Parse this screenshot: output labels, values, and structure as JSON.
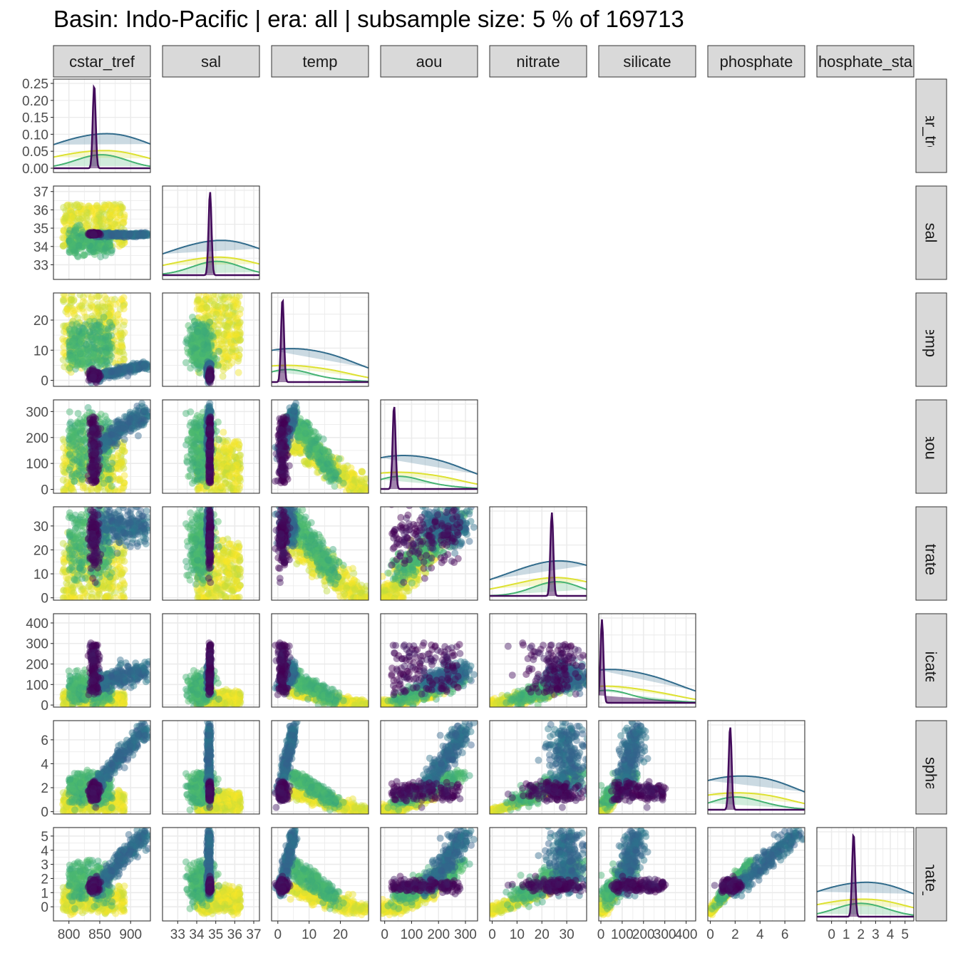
{
  "title": "Basin: Indo-Pacific | era: all | subsample size: 5 % of 169713",
  "chart_data": {
    "type": "scatter",
    "subtype": "pairs matrix (lower triangle scatter, diagonal density)",
    "grid": true,
    "color_scale": "viridis",
    "colors": {
      "purple": "#440154",
      "blue": "#31688E",
      "teal": "#21918C",
      "green": "#35B779",
      "yellow": "#FDE725",
      "strip_bg": "#D9D9D9",
      "grid": "#EBEBEB"
    },
    "variables": [
      "cstar_tref",
      "sal",
      "temp",
      "aou",
      "nitrate",
      "silicate",
      "phosphate",
      "phosphate_star"
    ],
    "column_labels": [
      "cstar_tref",
      "sal",
      "temp",
      "aou",
      "nitrate",
      "silicate",
      "phosphate",
      "hosphate_sta"
    ],
    "row_labels": [
      "cstar_tref",
      "sal",
      "temp",
      "aou",
      "nitrate",
      "silicate",
      "phosphate",
      "hosphate_sta"
    ],
    "ranges": {
      "cstar_tref": [
        775,
        932
      ],
      "sal": [
        32.2,
        37.3
      ],
      "temp": [
        -2,
        29
      ],
      "aou": [
        -15,
        345
      ],
      "nitrate": [
        -1,
        38
      ],
      "silicate": [
        -10,
        445
      ],
      "phosphate": [
        -0.2,
        7.6
      ],
      "phosphate_star": [
        -1.0,
        5.6
      ]
    },
    "x_tick_labels": {
      "cstar_tref": [
        "800",
        "850",
        "900"
      ],
      "sal": [
        "33",
        "34",
        "35",
        "36",
        "37"
      ],
      "temp": [
        "0",
        "10",
        "20"
      ],
      "aou": [
        "0",
        "100",
        "200",
        "300"
      ],
      "nitrate": [
        "0",
        "10",
        "20",
        "30"
      ],
      "silicate": [
        "0",
        "100",
        "200",
        "300",
        "400"
      ],
      "phosphate": [
        "0",
        "2",
        "4",
        "6"
      ],
      "phosphate_star": [
        "0",
        "1",
        "2",
        "3",
        "4",
        "5"
      ]
    },
    "y_tick_labels": {
      "cstar_tref_density": [
        "0.00",
        "0.05",
        "0.10",
        "0.15",
        "0.20",
        "0.25"
      ],
      "sal": [
        "33",
        "34",
        "35",
        "36",
        "37"
      ],
      "temp": [
        "0",
        "10",
        "20"
      ],
      "aou": [
        "0",
        "100",
        "200",
        "300"
      ],
      "nitrate": [
        "0",
        "10",
        "20",
        "30"
      ],
      "silicate": [
        "0",
        "100",
        "200",
        "300",
        "400"
      ],
      "phosphate": [
        "0",
        "2",
        "4",
        "6"
      ],
      "phosphate_star": [
        "0",
        "1",
        "2",
        "3",
        "4",
        "5"
      ]
    },
    "density_ymax": 0.25,
    "density_peaks": {
      "cstar_tref": 841,
      "sal": 34.7,
      "temp": 1.5,
      "aou": 35,
      "nitrate": 24,
      "silicate": 5,
      "phosphate": 1.6,
      "phosphate_star": 1.5
    }
  }
}
